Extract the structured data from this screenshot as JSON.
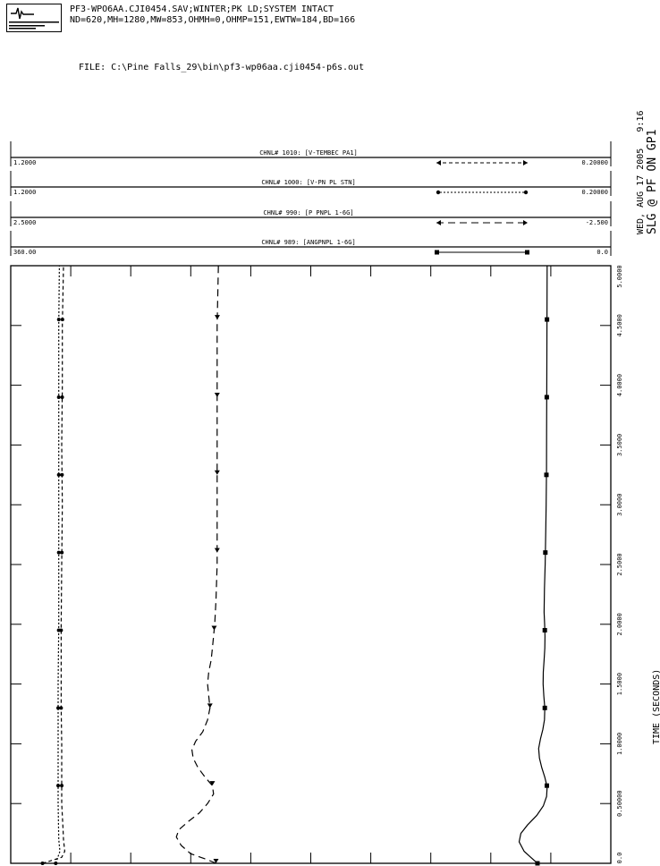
{
  "header": {
    "case_line": "PF3-WPO6AA.CJI0454.SAV;WINTER;PK LD;SYSTEM INTACT",
    "params_line": "ND=620,MH=1280,MW=853,OHMH=0,OHMP=151,EWTW=184,BD=166",
    "file_line": "FILE: C:\\Pine Falls_29\\bin\\pf3-wp06aa.cji0454-p6s.out",
    "date_time": "WED, AUG 17 2005   9:16",
    "run_title": "SLG @ PF ON GP1"
  },
  "colors": {
    "ink": "#000000",
    "paper": "#ffffff"
  },
  "chart_data": {
    "type": "line",
    "xlabel": "TIME (SECONDS)",
    "x_ticks": [
      "0.0",
      "0.50000",
      "1.0000",
      "1.5000",
      "2.0000",
      "2.5000",
      "3.0000",
      "3.5000",
      "4.0000",
      "4.5000",
      "5.0000"
    ],
    "xlim": [
      0,
      5
    ],
    "series": [
      {
        "name": "CHNL# 1010: [V-TEMBEC PA1]",
        "axis_min": "1.2000",
        "axis_max": "0.20000",
        "vmin": 1.2,
        "vmax": 0.2,
        "style": "dashed-arrow",
        "points": [
          [
            0,
            1.147
          ],
          [
            0.05,
            1.115
          ],
          [
            0.1,
            1.11
          ],
          [
            0.2,
            1.112
          ],
          [
            0.3,
            1.113
          ],
          [
            0.5,
            1.115
          ],
          [
            0.8,
            1.115
          ],
          [
            1.0,
            1.115
          ],
          [
            1.3,
            1.116
          ],
          [
            1.7,
            1.116
          ],
          [
            2.0,
            1.116
          ],
          [
            2.5,
            1.115
          ],
          [
            3.0,
            1.114
          ],
          [
            3.5,
            1.115
          ],
          [
            4.0,
            1.114
          ],
          [
            4.5,
            1.114
          ],
          [
            5.0,
            1.112
          ]
        ]
      },
      {
        "name": "CHNL# 1000: [V-PN PL STN]",
        "axis_min": "1.2000",
        "axis_max": "0.20000",
        "vmin": 1.2,
        "vmax": 0.2,
        "style": "dotted-dot",
        "points": [
          [
            0,
            1.125
          ],
          [
            0.1,
            1.118
          ],
          [
            0.2,
            1.12
          ],
          [
            0.5,
            1.121
          ],
          [
            1.0,
            1.121
          ],
          [
            1.5,
            1.121
          ],
          [
            2.0,
            1.12
          ],
          [
            2.5,
            1.12
          ],
          [
            3.0,
            1.12
          ],
          [
            3.5,
            1.12
          ],
          [
            4.0,
            1.12
          ],
          [
            4.5,
            1.12
          ],
          [
            5.0,
            1.119
          ]
        ]
      },
      {
        "name": "CHNL# 990: [P PNPL 1-6G]",
        "axis_min": "2.5000",
        "axis_max": "-2.500",
        "vmin": 2.5,
        "vmax": -2.5,
        "style": "long-dash",
        "points": [
          [
            0,
            0.79
          ],
          [
            0.03,
            0.86
          ],
          [
            0.08,
            1.0
          ],
          [
            0.15,
            1.08
          ],
          [
            0.22,
            1.12
          ],
          [
            0.28,
            1.1
          ],
          [
            0.35,
            1.02
          ],
          [
            0.42,
            0.93
          ],
          [
            0.5,
            0.86
          ],
          [
            0.58,
            0.81
          ],
          [
            0.65,
            0.82
          ],
          [
            0.72,
            0.88
          ],
          [
            0.8,
            0.94
          ],
          [
            0.88,
            0.98
          ],
          [
            0.95,
            0.99
          ],
          [
            1.02,
            0.96
          ],
          [
            1.1,
            0.9
          ],
          [
            1.2,
            0.86
          ],
          [
            1.3,
            0.84
          ],
          [
            1.4,
            0.85
          ],
          [
            1.5,
            0.86
          ],
          [
            1.6,
            0.85
          ],
          [
            1.7,
            0.83
          ],
          [
            1.8,
            0.82
          ],
          [
            2.0,
            0.8
          ],
          [
            2.2,
            0.79
          ],
          [
            2.5,
            0.78
          ],
          [
            3.0,
            0.78
          ],
          [
            3.5,
            0.78
          ],
          [
            4.0,
            0.78
          ],
          [
            4.5,
            0.78
          ],
          [
            5.0,
            0.77
          ]
        ]
      },
      {
        "name": "CHNL# 989: [ANGPNPL 1-6G]",
        "axis_min": "360.00",
        "axis_max": "0.0",
        "vmin": 360,
        "vmax": 0,
        "style": "solid-square",
        "points": [
          [
            0,
            44.0
          ],
          [
            0.05,
            48.0
          ],
          [
            0.1,
            52.0
          ],
          [
            0.18,
            55.0
          ],
          [
            0.25,
            54.0
          ],
          [
            0.32,
            50.0
          ],
          [
            0.4,
            44.5
          ],
          [
            0.48,
            40.5
          ],
          [
            0.56,
            38.5
          ],
          [
            0.64,
            38.2
          ],
          [
            0.72,
            39.6
          ],
          [
            0.8,
            41.4
          ],
          [
            0.88,
            42.8
          ],
          [
            0.96,
            43.3
          ],
          [
            1.04,
            42.2
          ],
          [
            1.12,
            40.8
          ],
          [
            1.2,
            39.8
          ],
          [
            1.3,
            39.6
          ],
          [
            1.4,
            40.2
          ],
          [
            1.5,
            40.6
          ],
          [
            1.6,
            40.5
          ],
          [
            1.7,
            40.0
          ],
          [
            1.8,
            39.6
          ],
          [
            1.9,
            39.5
          ],
          [
            2.0,
            39.7
          ],
          [
            2.1,
            40.0
          ],
          [
            2.3,
            39.8
          ],
          [
            2.5,
            39.4
          ],
          [
            2.8,
            39.0
          ],
          [
            3.0,
            38.8
          ],
          [
            3.3,
            38.6
          ],
          [
            3.6,
            38.5
          ],
          [
            4.0,
            38.4
          ],
          [
            4.5,
            38.3
          ],
          [
            5.0,
            38.2
          ]
        ]
      }
    ]
  }
}
